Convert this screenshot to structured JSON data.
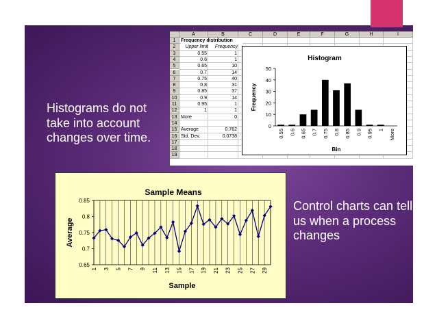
{
  "slide": {
    "left_text": "Histograms do not take into account changes over time.",
    "right_text": "Control charts can tell us when a process changes"
  },
  "spreadsheet": {
    "columns": [
      "A",
      "B",
      "C",
      "D",
      "E",
      "F",
      "G",
      "H",
      "I"
    ],
    "row_numbers": [
      "1",
      "2",
      "3",
      "4",
      "5",
      "6",
      "7",
      "8",
      "9",
      "10",
      "11",
      "12",
      "13",
      "14",
      "15",
      "16",
      "17",
      "18",
      "19"
    ],
    "title": "Frequency distribution",
    "headers": [
      "Upper limit",
      "Frequency"
    ],
    "rows": [
      [
        "0.55",
        "1"
      ],
      [
        "0.6",
        "1"
      ],
      [
        "0.65",
        "10"
      ],
      [
        "0.7",
        "14"
      ],
      [
        "0.75",
        "40"
      ],
      [
        "0.8",
        "31"
      ],
      [
        "0.85",
        "37"
      ],
      [
        "0.9",
        "14"
      ],
      [
        "0.95",
        "1"
      ],
      [
        "1",
        "1"
      ],
      [
        "More",
        "0"
      ]
    ],
    "stats": [
      [
        "Average",
        "0.762"
      ],
      [
        "Std. Dev.",
        "0.0738"
      ]
    ]
  },
  "chart_data": [
    {
      "type": "bar",
      "title": "Histogram",
      "xlabel": "Bin",
      "ylabel": "Frequency",
      "categories": [
        "0.55",
        "0.6",
        "0.65",
        "0.7",
        "0.75",
        "0.8",
        "0.85",
        "0.9",
        "0.95",
        "1",
        "More"
      ],
      "values": [
        1,
        1,
        10,
        14,
        40,
        31,
        37,
        14,
        1,
        1,
        0
      ],
      "ylim": [
        0,
        50
      ],
      "yticks": [
        "0",
        "10",
        "20",
        "30",
        "40",
        "50"
      ],
      "legend": "none",
      "colors": {
        "bars": "#000000"
      }
    },
    {
      "type": "line",
      "title": "Sample Means",
      "xlabel": "Sample",
      "ylabel": "Average",
      "x": [
        1,
        2,
        3,
        4,
        5,
        6,
        7,
        8,
        9,
        10,
        11,
        12,
        13,
        14,
        15,
        16,
        17,
        18,
        19,
        20,
        21,
        22,
        23,
        24,
        25,
        26,
        27,
        28,
        29,
        30
      ],
      "y": [
        0.733,
        0.756,
        0.759,
        0.731,
        0.726,
        0.706,
        0.736,
        0.749,
        0.711,
        0.733,
        0.748,
        0.767,
        0.734,
        0.783,
        0.692,
        0.754,
        0.779,
        0.833,
        0.776,
        0.79,
        0.767,
        0.793,
        0.777,
        0.802,
        0.744,
        0.788,
        0.819,
        0.738,
        0.803,
        0.831
      ],
      "xticks": [
        "1",
        "3",
        "5",
        "7",
        "9",
        "11",
        "13",
        "15",
        "17",
        "19",
        "21",
        "23",
        "25",
        "27",
        "29"
      ],
      "yticks": [
        "0.65",
        "0.7",
        "0.75",
        "0.8",
        "0.85"
      ],
      "ylim": [
        0.65,
        0.85
      ],
      "grid": "vertical",
      "legend": "none",
      "colors": {
        "line": "#00007a",
        "background": "#fffcc6"
      }
    }
  ]
}
